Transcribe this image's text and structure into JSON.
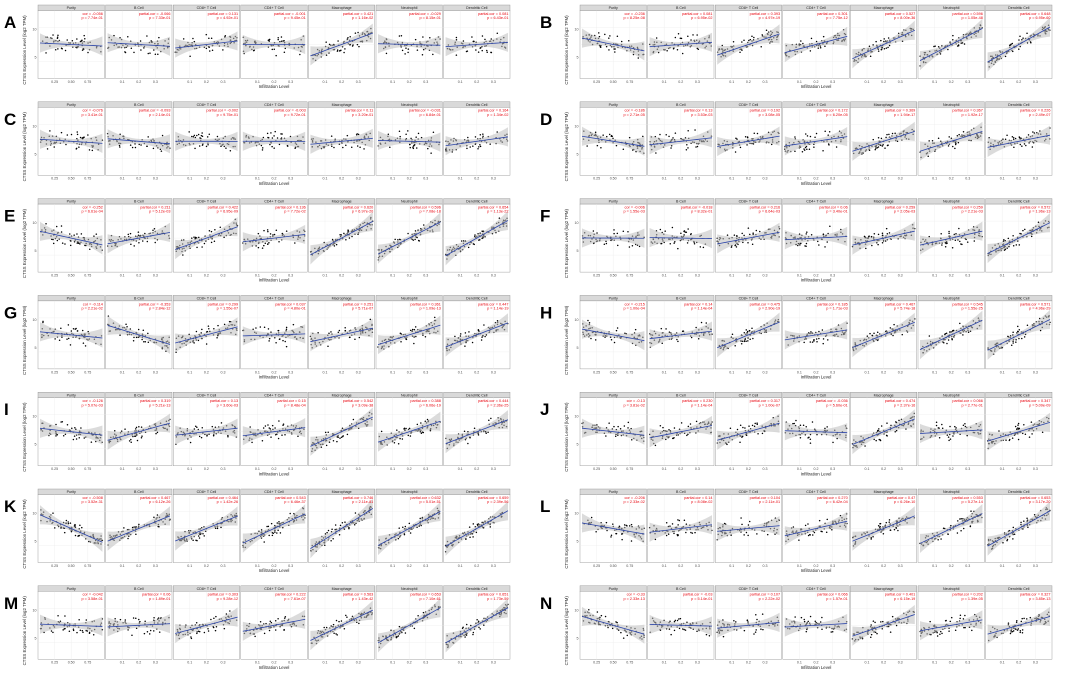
{
  "figure": {
    "x_axis_label": "Infiltration Level",
    "y_axis_label": "CTSS Expression Level (log2 TPM)"
  },
  "chart_data": [
    {
      "panel": "A",
      "type": "scatter",
      "cancer": "",
      "cells": [
        {
          "name": "Purity",
          "cor_label": "cor",
          "cor": "-0.056",
          "p": "7.74e-01"
        },
        {
          "name": "B Cell",
          "cor_label": "partial.cor",
          "cor": "-0.066",
          "p": "7.33e-01"
        },
        {
          "name": "CD8+ T Cell",
          "cor_label": "partial.cor",
          "cor": "0.131",
          "p": "4.92e-01"
        },
        {
          "name": "CD4+ T Cell",
          "cor_label": "partial.cor",
          "cor": "-0.001",
          "p": "9.45e-01"
        },
        {
          "name": "Macrophage",
          "cor_label": "partial.cor",
          "cor": "0.421",
          "p": "1.16e-02"
        },
        {
          "name": "Neutrophil",
          "cor_label": "partial.cor",
          "cor": "-0.029",
          "p": "8.15e-01"
        },
        {
          "name": "Dendritic Cell",
          "cor_label": "partial.cor",
          "cor": "0.081",
          "p": "6.43e-01"
        }
      ]
    },
    {
      "panel": "B",
      "type": "scatter",
      "cancer": "",
      "cells": [
        {
          "name": "Purity",
          "cor_label": "cor",
          "cor": "-0.236",
          "p": "8.25e-08"
        },
        {
          "name": "B Cell",
          "cor_label": "partial.cor",
          "cor": "0.081",
          "p": "6.95e-02"
        },
        {
          "name": "CD8+ T Cell",
          "cor_label": "partial.cor",
          "cor": "0.393",
          "p": "4.97e-19"
        },
        {
          "name": "CD4+ T Cell",
          "cor_label": "partial.cor",
          "cor": "0.301",
          "p": "7.75e-12"
        },
        {
          "name": "Macrophage",
          "cor_label": "partial.cor",
          "cor": "0.527",
          "p": "8.00e-36"
        },
        {
          "name": "Neutrophil",
          "cor_label": "partial.cor",
          "cor": "0.596",
          "p": "1.05e-48"
        },
        {
          "name": "Dendritic Cell",
          "cor_label": "partial.cor",
          "cor": "0.648",
          "p": "6.95e-60"
        }
      ]
    },
    {
      "panel": "C",
      "type": "scatter",
      "cancer": "",
      "cells": [
        {
          "name": "Purity",
          "cor_label": "cor",
          "cor": "-0.076",
          "p": "3.41e-01"
        },
        {
          "name": "B Cell",
          "cor_label": "partial.cor",
          "cor": "-0.093",
          "p": "2.14e-01"
        },
        {
          "name": "CD8+ T Cell",
          "cor_label": "partial.cor",
          "cor": "-0.002",
          "p": "9.75e-01"
        },
        {
          "name": "CD4+ T Cell",
          "cor_label": "partial.cor",
          "cor": "-0.003",
          "p": "9.72e-01"
        },
        {
          "name": "Macrophage",
          "cor_label": "partial.cor",
          "cor": "0.11",
          "p": "3.20e-01"
        },
        {
          "name": "Neutrophil",
          "cor_label": "partial.cor",
          "cor": "-0.031",
          "p": "6.84e-01"
        },
        {
          "name": "Dendritic Cell",
          "cor_label": "partial.cor",
          "cor": "0.164",
          "p": "1.34e-02"
        }
      ]
    },
    {
      "panel": "D",
      "type": "scatter",
      "cancer": "",
      "cells": [
        {
          "name": "Purity",
          "cor_label": "cor",
          "cor": "-0.186",
          "p": "2.71e-05"
        },
        {
          "name": "B Cell",
          "cor_label": "partial.cor",
          "cor": "0.13",
          "p": "3.53e-03"
        },
        {
          "name": "CD8+ T Cell",
          "cor_label": "partial.cor",
          "cor": "0.192",
          "p": "3.08e-05"
        },
        {
          "name": "CD4+ T Cell",
          "cor_label": "partial.cor",
          "cor": "0.172",
          "p": "6.20e-05"
        },
        {
          "name": "Macrophage",
          "cor_label": "partial.cor",
          "cor": "0.369",
          "p": "1.94e-17"
        },
        {
          "name": "Neutrophil",
          "cor_label": "partial.cor",
          "cor": "0.367",
          "p": "1.92e-17"
        },
        {
          "name": "Dendritic Cell",
          "cor_label": "partial.cor",
          "cor": "0.226",
          "p": "2.49e-07"
        }
      ]
    },
    {
      "panel": "E",
      "type": "scatter",
      "cancer": "",
      "cells": [
        {
          "name": "Purity",
          "cor_label": "cor",
          "cor": "-0.252",
          "p": "6.61e-04"
        },
        {
          "name": "B Cell",
          "cor_label": "partial.cor",
          "cor": "0.211",
          "p": "5.12e-03"
        },
        {
          "name": "CD8+ T Cell",
          "cor_label": "partial.cor",
          "cor": "0.422",
          "p": "6.95e-09"
        },
        {
          "name": "CD4+ T Cell",
          "cor_label": "partial.cor",
          "cor": "0.136",
          "p": "7.72e-02"
        },
        {
          "name": "Macrophage",
          "cor_label": "partial.cor",
          "cor": "0.620",
          "p": "6.97e-20"
        },
        {
          "name": "Neutrophil",
          "cor_label": "partial.cor",
          "cor": "0.596",
          "p": "7.08e-18"
        },
        {
          "name": "Dendritic Cell",
          "cor_label": "partial.cor",
          "cor": "0.654",
          "p": "1.13e-22"
        }
      ]
    },
    {
      "panel": "F",
      "type": "scatter",
      "cancer": "",
      "cells": [
        {
          "name": "Purity",
          "cor_label": "cor",
          "cor": "-0.006",
          "p": "1.55e-03"
        },
        {
          "name": "B Cell",
          "cor_label": "partial.cor",
          "cor": "-0.018",
          "p": "8.32e-01"
        },
        {
          "name": "CD8+ T Cell",
          "cor_label": "partial.cor",
          "cor": "0.216",
          "p": "6.64e-03"
        },
        {
          "name": "CD4+ T Cell",
          "cor_label": "partial.cor",
          "cor": "0.06",
          "p": "3.40e-01"
        },
        {
          "name": "Macrophage",
          "cor_label": "partial.cor",
          "cor": "0.259",
          "p": "2.05e-03"
        },
        {
          "name": "Neutrophil",
          "cor_label": "partial.cor",
          "cor": "0.259",
          "p": "2.21e-03"
        },
        {
          "name": "Dendritic Cell",
          "cor_label": "partial.cor",
          "cor": "0.572",
          "p": "1.96e-13"
        }
      ]
    },
    {
      "panel": "G",
      "type": "scatter",
      "cancer": "",
      "cells": [
        {
          "name": "Purity",
          "cor_label": "cor",
          "cor": "-0.114",
          "p": "2.21e-02"
        },
        {
          "name": "B Cell",
          "cor_label": "partial.cor",
          "cor": "-0.353",
          "p": "2.84e-12"
        },
        {
          "name": "CD8+ T Cell",
          "cor_label": "partial.cor",
          "cor": "0.299",
          "p": "1.55e-07"
        },
        {
          "name": "CD4+ T Cell",
          "cor_label": "partial.cor",
          "cor": "0.037",
          "p": "4.80e-01"
        },
        {
          "name": "Macrophage",
          "cor_label": "partial.cor",
          "cor": "0.251",
          "p": "5.71e-07"
        },
        {
          "name": "Neutrophil",
          "cor_label": "partial.cor",
          "cor": "0.361",
          "p": "1.09e-13"
        },
        {
          "name": "Dendritic Cell",
          "cor_label": "partial.cor",
          "cor": "0.447",
          "p": "1.14e-19"
        }
      ]
    },
    {
      "panel": "H",
      "type": "scatter",
      "cancer": "",
      "cells": [
        {
          "name": "Purity",
          "cor_label": "cor",
          "cor": "-0.215",
          "p": "1.00e-04"
        },
        {
          "name": "B Cell",
          "cor_label": "partial.cor",
          "cor": "0.14",
          "p": "1.14e-04"
        },
        {
          "name": "CD8+ T Cell",
          "cor_label": "partial.cor",
          "cor": "0.475",
          "p": "2.90e-19"
        },
        {
          "name": "CD4+ T Cell",
          "cor_label": "partial.cor",
          "cor": "0.185",
          "p": "1.71e-03"
        },
        {
          "name": "Macrophage",
          "cor_label": "partial.cor",
          "cor": "0.467",
          "p": "5.74e-18"
        },
        {
          "name": "Neutrophil",
          "cor_label": "partial.cor",
          "cor": "0.545",
          "p": "1.55e-25"
        },
        {
          "name": "Dendritic Cell",
          "cor_label": "partial.cor",
          "cor": "0.571",
          "p": "4.96e-29"
        }
      ]
    },
    {
      "panel": "I",
      "type": "scatter",
      "cancer": "",
      "cells": [
        {
          "name": "Purity",
          "cor_label": "cor",
          "cor": "-0.126",
          "p": "5.07e-03"
        },
        {
          "name": "B Cell",
          "cor_label": "partial.cor",
          "cor": "0.319",
          "p": "5.21e-13"
        },
        {
          "name": "CD8+ T Cell",
          "cor_label": "partial.cor",
          "cor": "0.13",
          "p": "3.60e-03"
        },
        {
          "name": "CD4+ T Cell",
          "cor_label": "partial.cor",
          "cor": "0.15",
          "p": "8.48e-04"
        },
        {
          "name": "Macrophage",
          "cor_label": "partial.cor",
          "cor": "0.542",
          "p": "3.09e-38"
        },
        {
          "name": "Neutrophil",
          "cor_label": "partial.cor",
          "cor": "0.388",
          "p": "6.06e-19"
        },
        {
          "name": "Dendritic Cell",
          "cor_label": "partial.cor",
          "cor": "0.444",
          "p": "2.36e-25"
        }
      ]
    },
    {
      "panel": "J",
      "type": "scatter",
      "cancer": "",
      "cells": [
        {
          "name": "Purity",
          "cor_label": "cor",
          "cor": "-0.13",
          "p": "3.81e-02"
        },
        {
          "name": "B Cell",
          "cor_label": "partial.cor",
          "cor": "0.230",
          "p": "1.14e-04"
        },
        {
          "name": "CD8+ T Cell",
          "cor_label": "partial.cor",
          "cor": "0.317",
          "p": "1.00e-07"
        },
        {
          "name": "CD4+ T Cell",
          "cor_label": "partial.cor",
          "cor": "-0.036",
          "p": "5.60e-01"
        },
        {
          "name": "Macrophage",
          "cor_label": "partial.cor",
          "cor": "0.474",
          "p": "2.37e-16"
        },
        {
          "name": "Neutrophil",
          "cor_label": "partial.cor",
          "cor": "0.066",
          "p": "2.77e-01"
        },
        {
          "name": "Dendritic Cell",
          "cor_label": "partial.cor",
          "cor": "0.347",
          "p": "5.09e-09"
        }
      ]
    },
    {
      "panel": "K",
      "type": "scatter",
      "cancer": "",
      "cells": [
        {
          "name": "Purity",
          "cor_label": "cor",
          "cor": "-0.508",
          "p": "3.52e-31"
        },
        {
          "name": "B Cell",
          "cor_label": "partial.cor",
          "cor": "0.467",
          "p": "6.12e-26"
        },
        {
          "name": "CD8+ T Cell",
          "cor_label": "partial.cor",
          "cor": "0.464",
          "p": "1.42e-26"
        },
        {
          "name": "CD4+ T Cell",
          "cor_label": "partial.cor",
          "cor": "0.543",
          "p": "6.46e-37"
        },
        {
          "name": "Macrophage",
          "cor_label": "partial.cor",
          "cor": "0.746",
          "p": "2.11e-81"
        },
        {
          "name": "Neutrophil",
          "cor_label": "partial.cor",
          "cor": "0.632",
          "p": "5.01e-51"
        },
        {
          "name": "Dendritic Cell",
          "cor_label": "partial.cor",
          "cor": "0.659",
          "p": "2.39e-56"
        }
      ]
    },
    {
      "panel": "L",
      "type": "scatter",
      "cancer": "",
      "cells": [
        {
          "name": "Purity",
          "cor_label": "cor",
          "cor": "-0.206",
          "p": "2.33e-02"
        },
        {
          "name": "B Cell",
          "cor_label": "partial.cor",
          "cor": "0.14",
          "p": "8.08e-02"
        },
        {
          "name": "CD8+ T Cell",
          "cor_label": "partial.cor",
          "cor": "0.104",
          "p": "2.11e-01"
        },
        {
          "name": "CD4+ T Cell",
          "cor_label": "partial.cor",
          "cor": "0.270",
          "p": "6.42e-04"
        },
        {
          "name": "Macrophage",
          "cor_label": "partial.cor",
          "cor": "0.47",
          "p": "6.26e-10"
        },
        {
          "name": "Neutrophil",
          "cor_label": "partial.cor",
          "cor": "0.553",
          "p": "5.27e-14"
        },
        {
          "name": "Dendritic Cell",
          "cor_label": "partial.cor",
          "cor": "0.653",
          "p": "3.17e-20"
        }
      ]
    },
    {
      "panel": "M",
      "type": "scatter",
      "cancer": "",
      "cells": [
        {
          "name": "Purity",
          "cor_label": "cor",
          "cor": "-0.042",
          "p": "3.58e-01"
        },
        {
          "name": "B Cell",
          "cor_label": "partial.cor",
          "cor": "0.06",
          "p": "1.89e-01"
        },
        {
          "name": "CD8+ T Cell",
          "cor_label": "partial.cor",
          "cor": "0.303",
          "p": "9.28e-12"
        },
        {
          "name": "CD4+ T Cell",
          "cor_label": "partial.cor",
          "cor": "0.222",
          "p": "7.61e-07"
        },
        {
          "name": "Macrophage",
          "cor_label": "partial.cor",
          "cor": "0.563",
          "p": "1.43e-42"
        },
        {
          "name": "Neutrophil",
          "cor_label": "partial.cor",
          "cor": "0.653",
          "p": "7.10e-61"
        },
        {
          "name": "Dendritic Cell",
          "cor_label": "partial.cor",
          "cor": "0.651",
          "p": "1.73e-59"
        }
      ]
    },
    {
      "panel": "N",
      "type": "scatter",
      "cancer": "",
      "cells": [
        {
          "name": "Purity",
          "cor_label": "cor",
          "cor": "-0.33",
          "p": "2.33e-13"
        },
        {
          "name": "B Cell",
          "cor_label": "partial.cor",
          "cor": "-0.03",
          "p": "5.14e-01"
        },
        {
          "name": "CD8+ T Cell",
          "cor_label": "partial.cor",
          "cor": "0.107",
          "p": "2.22e-02"
        },
        {
          "name": "CD4+ T Cell",
          "cor_label": "partial.cor",
          "cor": "0.066",
          "p": "1.57e-01"
        },
        {
          "name": "Macrophage",
          "cor_label": "partial.cor",
          "cor": "0.401",
          "p": "6.15e-19"
        },
        {
          "name": "Neutrophil",
          "cor_label": "partial.cor",
          "cor": "0.202",
          "p": "1.39e-05"
        },
        {
          "name": "Dendritic Cell",
          "cor_label": "partial.cor",
          "cor": "0.327",
          "p": "3.85e-13"
        }
      ]
    }
  ],
  "style": {
    "point_color": "#000000",
    "fit_color": "#2b44a8",
    "ci_color": "#bdbdbd",
    "stat_color": "#e8000b",
    "strip_color": "#d9d9d9"
  }
}
